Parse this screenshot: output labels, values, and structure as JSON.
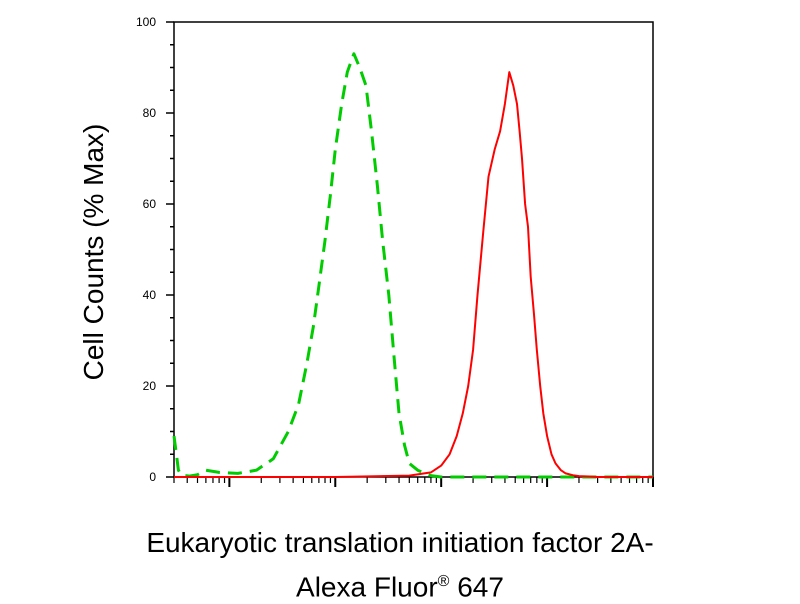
{
  "chart_data": {
    "type": "line",
    "title": "",
    "ylabel": "Cell Counts (% Max)",
    "xlabel_line1": "Eukaryotic translation initiation factor 2A-",
    "xlabel_line2": "Alexa Fluor",
    "xlabel_mark": "®",
    "xlabel_line2_end": " 647",
    "xscale": "log",
    "xlim": [
      30,
      1000000
    ],
    "ylim": [
      0,
      100
    ],
    "yticks": [
      0,
      20,
      40,
      60,
      80,
      100
    ],
    "ytick_labels": [
      "0",
      "20",
      "40",
      "60",
      "80",
      "100"
    ],
    "grid": false,
    "series": [
      {
        "color": "#00cc00",
        "dash": "dashed",
        "x": [
          30,
          32,
          33,
          35,
          38,
          42,
          50,
          60,
          80,
          120,
          180,
          260,
          360,
          450,
          540,
          620,
          700,
          800,
          900,
          1000,
          1150,
          1300,
          1500,
          1700,
          1950,
          2200,
          2500,
          2800,
          3200,
          3600,
          4000,
          4500,
          5000,
          6000,
          7000,
          8000,
          10000,
          15000,
          30000,
          100000,
          1000000
        ],
        "y": [
          9,
          4,
          1.5,
          0.5,
          0.3,
          0.2,
          0.5,
          1.5,
          1,
          0.8,
          1.5,
          4,
          10,
          16,
          25,
          33,
          42,
          52,
          62,
          72,
          82,
          89,
          93,
          90,
          86,
          76,
          64,
          52,
          40,
          26,
          14,
          7,
          3,
          1.5,
          0.8,
          0.3,
          0,
          0,
          0,
          0,
          0
        ]
      },
      {
        "color": "#ff0000",
        "dash": "solid",
        "x": [
          30,
          1000,
          5000,
          8000,
          10000,
          12000,
          14000,
          16000,
          18000,
          20000,
          22000,
          25000,
          28000,
          32000,
          36000,
          40000,
          44000,
          48000,
          52000,
          55000,
          58000,
          62000,
          66000,
          70000,
          75000,
          80000,
          86000,
          92000,
          100000,
          110000,
          120000,
          135000,
          150000,
          175000,
          200000,
          250000,
          300000,
          400000,
          600000,
          1000000
        ],
        "y": [
          0,
          0,
          0.3,
          1,
          2.5,
          5,
          9,
          14,
          20,
          28,
          40,
          54,
          66,
          72,
          76,
          82,
          89,
          86,
          82,
          76,
          70,
          60,
          55,
          44,
          36,
          28,
          20,
          14,
          9,
          5,
          3,
          1.5,
          0.8,
          0.4,
          0.2,
          0.1,
          0,
          0,
          0,
          0
        ]
      }
    ]
  }
}
